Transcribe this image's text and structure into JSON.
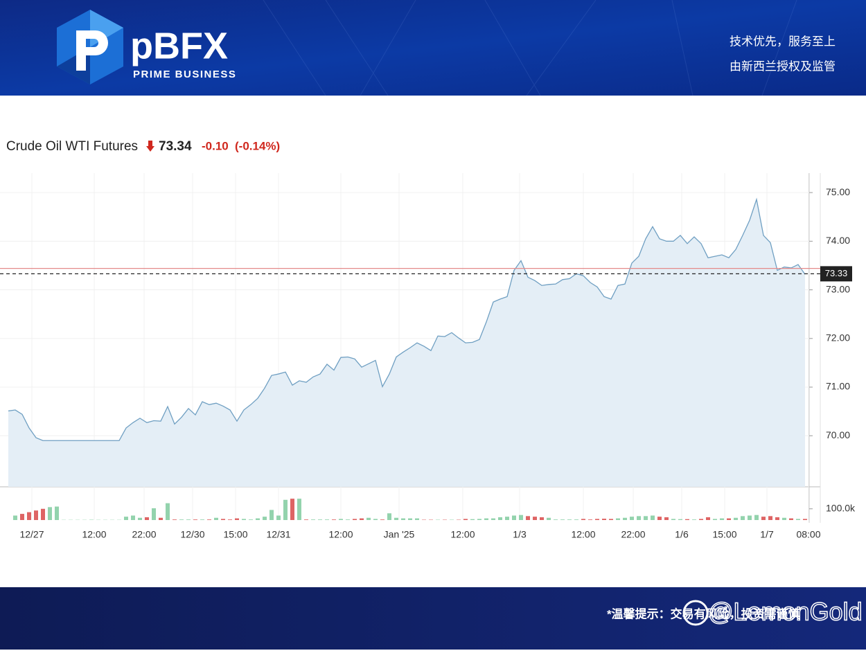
{
  "header": {
    "brand": "pBFX",
    "tagline": "PRIME BUSINESS",
    "slogans": [
      "技术优先，服务至上",
      "由新西兰授权及监管"
    ]
  },
  "chart_data": {
    "type": "line",
    "title": "Crude Oil WTI Futures",
    "price": "73.34",
    "change": "-0.10",
    "change_pct": "(-0.14%)",
    "color": "#6f9fc2",
    "fill": "#e4eef6",
    "values": [
      70.51,
      70.53,
      70.44,
      70.16,
      69.96,
      69.9,
      69.9,
      69.9,
      69.9,
      69.9,
      69.9,
      69.9,
      69.9,
      69.9,
      69.9,
      69.9,
      69.9,
      70.16,
      70.27,
      70.36,
      70.27,
      70.31,
      70.3,
      70.6,
      70.24,
      70.38,
      70.56,
      70.43,
      70.7,
      70.64,
      70.67,
      70.61,
      70.53,
      70.3,
      70.53,
      70.64,
      70.77,
      70.98,
      71.24,
      71.27,
      71.31,
      71.04,
      71.13,
      71.1,
      71.21,
      71.27,
      71.47,
      71.35,
      71.61,
      71.62,
      71.58,
      71.41,
      71.48,
      71.55,
      71.01,
      71.27,
      71.62,
      71.72,
      71.81,
      71.91,
      71.84,
      71.75,
      72.05,
      72.04,
      72.12,
      72.01,
      71.91,
      71.92,
      71.98,
      72.34,
      72.75,
      72.81,
      72.86,
      73.4,
      73.6,
      73.26,
      73.19,
      73.09,
      73.11,
      73.12,
      73.21,
      73.23,
      73.33,
      73.29,
      73.15,
      73.06,
      72.86,
      72.81,
      73.09,
      73.12,
      73.55,
      73.69,
      74.05,
      74.3,
      74.05,
      74.0,
      74.0,
      74.12,
      73.95,
      74.09,
      73.95,
      73.66,
      73.69,
      73.72,
      73.66,
      73.83,
      74.12,
      74.43,
      74.86,
      74.12,
      73.97,
      73.4,
      73.47,
      73.45,
      73.52,
      73.32
    ],
    "xlim": [
      0,
      115.6
    ],
    "xticks": [
      {
        "value": 3.4,
        "label": "12/27"
      },
      {
        "value": 12.4,
        "label": "12:00"
      },
      {
        "value": 19.6,
        "label": "22:00"
      },
      {
        "value": 26.6,
        "label": "12/30"
      },
      {
        "value": 32.8,
        "label": "15:00"
      },
      {
        "value": 39,
        "label": "12/31"
      },
      {
        "value": 48,
        "label": "12:00"
      },
      {
        "value": 56.4,
        "label": "Jan '25"
      },
      {
        "value": 65.6,
        "label": "12:00"
      },
      {
        "value": 73.8,
        "label": "1/3"
      },
      {
        "value": 83,
        "label": "12:00"
      },
      {
        "value": 90.2,
        "label": "22:00"
      },
      {
        "value": 97.2,
        "label": "1/6"
      },
      {
        "value": 103.4,
        "label": "15:00"
      },
      {
        "value": 109.5,
        "label": "1/7"
      },
      {
        "value": 115.5,
        "label": "08:00"
      }
    ],
    "ylim": [
      68.95,
      75.4
    ],
    "yticks": [
      {
        "value": 70,
        "label": "70.00"
      },
      {
        "value": 71,
        "label": "71.00"
      },
      {
        "value": 72,
        "label": "72.00"
      },
      {
        "value": 73,
        "label": "73.00"
      },
      {
        "value": 74,
        "label": "74.00"
      },
      {
        "value": 75,
        "label": "75.00"
      }
    ],
    "grid": true,
    "reference_lines": [
      {
        "value": 73.44,
        "color": "#e48a8a",
        "style": "solid"
      },
      {
        "value": 73.33,
        "color": "#222222",
        "style": "dashed"
      }
    ],
    "volume": {
      "up_color": "#93d3ad",
      "down_color": "#de6464",
      "ylim": [
        0,
        265000
      ],
      "yticks": [
        {
          "value": 100000,
          "label": "100.0k"
        }
      ],
      "values": [
        0,
        40000,
        55000,
        70000,
        85000,
        100000,
        115000,
        120000,
        2000,
        2000,
        2000,
        2000,
        3000,
        2000,
        2000,
        2000,
        2000,
        30000,
        40000,
        20000,
        25000,
        105000,
        20000,
        150000,
        5000,
        5000,
        5000,
        5000,
        5000,
        5000,
        20000,
        10000,
        5000,
        15000,
        10000,
        5000,
        15000,
        30000,
        90000,
        40000,
        180000,
        190000,
        190000,
        5000,
        5000,
        5000,
        5000,
        5000,
        10000,
        5000,
        10000,
        15000,
        20000,
        10000,
        5000,
        60000,
        20000,
        15000,
        15000,
        15000,
        3000,
        3000,
        3000,
        3000,
        3000,
        3000,
        10000,
        8000,
        10000,
        15000,
        15000,
        25000,
        30000,
        40000,
        45000,
        35000,
        30000,
        25000,
        20000,
        5000,
        5000,
        5000,
        5000,
        10000,
        5000,
        10000,
        12000,
        10000,
        15000,
        20000,
        30000,
        35000,
        35000,
        40000,
        30000,
        25000,
        10000,
        8000,
        8000,
        5000,
        10000,
        25000,
        10000,
        15000,
        15000,
        20000,
        35000,
        40000,
        45000,
        30000,
        35000,
        25000,
        20000,
        15000,
        10000,
        10000
      ]
    }
  },
  "footer": {
    "notice": "*温馨提示：交易有风险，投资需谨慎",
    "watermark": "@LemonGold"
  }
}
